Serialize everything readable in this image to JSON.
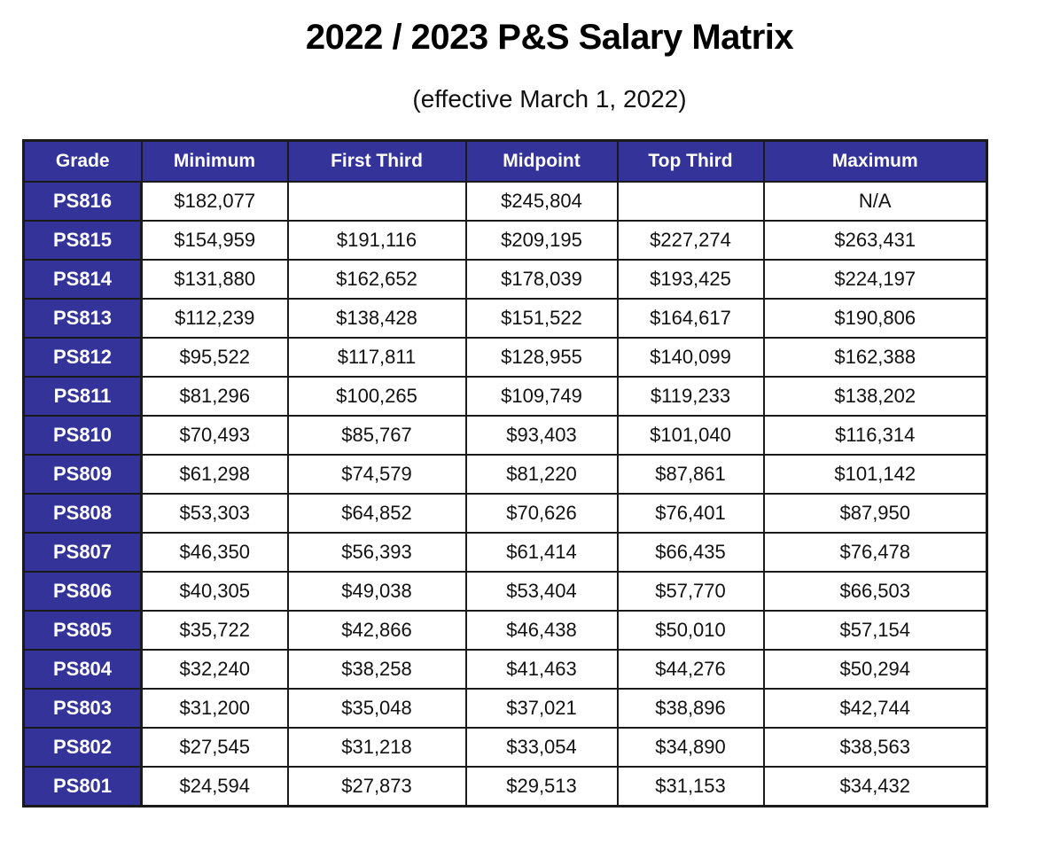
{
  "document": {
    "title": "2022 / 2023 P&S Salary Matrix",
    "subtitle": "(effective March 1, 2022)"
  },
  "colors": {
    "header_bg": "#333399",
    "header_text": "#ffffff",
    "border": "#1a1a1a"
  },
  "table": {
    "headers": [
      "Grade",
      "Minimum",
      "First Third",
      "Midpoint",
      "Top Third",
      "Maximum"
    ],
    "rows": [
      {
        "grade": "PS816",
        "minimum": "$182,077",
        "first_third": "",
        "midpoint": "$245,804",
        "top_third": "",
        "maximum": "N/A"
      },
      {
        "grade": "PS815",
        "minimum": "$154,959",
        "first_third": "$191,116",
        "midpoint": "$209,195",
        "top_third": "$227,274",
        "maximum": "$263,431"
      },
      {
        "grade": "PS814",
        "minimum": "$131,880",
        "first_third": "$162,652",
        "midpoint": "$178,039",
        "top_third": "$193,425",
        "maximum": "$224,197"
      },
      {
        "grade": "PS813",
        "minimum": "$112,239",
        "first_third": "$138,428",
        "midpoint": "$151,522",
        "top_third": "$164,617",
        "maximum": "$190,806"
      },
      {
        "grade": "PS812",
        "minimum": "$95,522",
        "first_third": "$117,811",
        "midpoint": "$128,955",
        "top_third": "$140,099",
        "maximum": "$162,388"
      },
      {
        "grade": "PS811",
        "minimum": "$81,296",
        "first_third": "$100,265",
        "midpoint": "$109,749",
        "top_third": "$119,233",
        "maximum": "$138,202"
      },
      {
        "grade": "PS810",
        "minimum": "$70,493",
        "first_third": "$85,767",
        "midpoint": "$93,403",
        "top_third": "$101,040",
        "maximum": "$116,314"
      },
      {
        "grade": "PS809",
        "minimum": "$61,298",
        "first_third": "$74,579",
        "midpoint": "$81,220",
        "top_third": "$87,861",
        "maximum": "$101,142"
      },
      {
        "grade": "PS808",
        "minimum": "$53,303",
        "first_third": "$64,852",
        "midpoint": "$70,626",
        "top_third": "$76,401",
        "maximum": "$87,950"
      },
      {
        "grade": "PS807",
        "minimum": "$46,350",
        "first_third": "$56,393",
        "midpoint": "$61,414",
        "top_third": "$66,435",
        "maximum": "$76,478"
      },
      {
        "grade": "PS806",
        "minimum": "$40,305",
        "first_third": "$49,038",
        "midpoint": "$53,404",
        "top_third": "$57,770",
        "maximum": "$66,503"
      },
      {
        "grade": "PS805",
        "minimum": "$35,722",
        "first_third": "$42,866",
        "midpoint": "$46,438",
        "top_third": "$50,010",
        "maximum": "$57,154"
      },
      {
        "grade": "PS804",
        "minimum": "$32,240",
        "first_third": "$38,258",
        "midpoint": "$41,463",
        "top_third": "$44,276",
        "maximum": "$50,294"
      },
      {
        "grade": "PS803",
        "minimum": "$31,200",
        "first_third": "$35,048",
        "midpoint": "$37,021",
        "top_third": "$38,896",
        "maximum": "$42,744"
      },
      {
        "grade": "PS802",
        "minimum": "$27,545",
        "first_third": "$31,218",
        "midpoint": "$33,054",
        "top_third": "$34,890",
        "maximum": "$38,563"
      },
      {
        "grade": "PS801",
        "minimum": "$24,594",
        "first_third": "$27,873",
        "midpoint": "$29,513",
        "top_third": "$31,153",
        "maximum": "$34,432"
      }
    ]
  }
}
